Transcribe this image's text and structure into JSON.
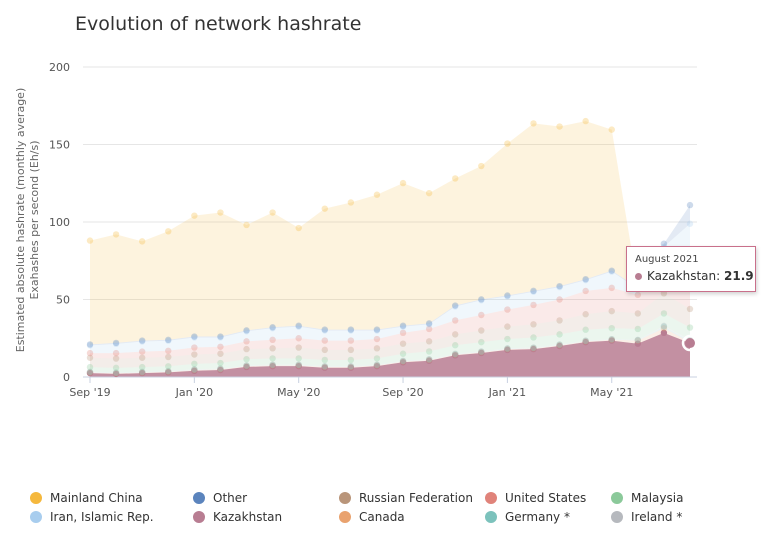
{
  "chart_data": {
    "type": "area",
    "stacked": true,
    "title": "Evolution of network hashrate",
    "ylabel": [
      "Estimated absolute hashrate (monthly average)",
      "Exahashes per second (Eh/s)"
    ],
    "xlabel": "",
    "ylim": [
      0,
      200
    ],
    "yticks": [
      "0",
      "50",
      "100",
      "150",
      "200"
    ],
    "xtick_labels": [
      {
        "label": "Sep '19",
        "index": 0
      },
      {
        "label": "Jan '20",
        "index": 4
      },
      {
        "label": "May '20",
        "index": 8
      },
      {
        "label": "Sep '20",
        "index": 12
      },
      {
        "label": "Jan '21",
        "index": 16
      },
      {
        "label": "May '21",
        "index": 20
      }
    ],
    "grid": true,
    "legend_position": "bottom",
    "categories": [
      "2019-09",
      "2019-10",
      "2019-11",
      "2019-12",
      "2020-01",
      "2020-02",
      "2020-03",
      "2020-04",
      "2020-05",
      "2020-06",
      "2020-07",
      "2020-08",
      "2020-09",
      "2020-10",
      "2020-11",
      "2020-12",
      "2021-01",
      "2021-02",
      "2021-03",
      "2021-04",
      "2021-05",
      "2021-06",
      "2021-07",
      "2021-08"
    ],
    "series": [
      {
        "name": "Kazakhstan",
        "color": "#b87d92",
        "values": [
          2.5,
          2.0,
          2.5,
          3.0,
          4.0,
          4.5,
          6.5,
          7.0,
          7.0,
          6.0,
          6.0,
          7.0,
          9.5,
          10.5,
          14.0,
          15.5,
          17.5,
          18.0,
          20.0,
          22.5,
          23.5,
          21.5,
          28.5,
          21.9
        ]
      },
      {
        "name": "Canada",
        "color": "#e9a26e",
        "values": [
          0.4,
          0.4,
          0.4,
          0.4,
          0.5,
          0.5,
          0.5,
          0.5,
          0.5,
          0.5,
          0.5,
          0.5,
          0.5,
          0.5,
          0.5,
          0.5,
          0.5,
          0.5,
          0.5,
          0.5,
          0.5,
          2.0,
          3.0,
          0.5
        ]
      },
      {
        "name": "Germany *",
        "color": "#7cc2bc",
        "values": [
          0.3,
          0.3,
          0.3,
          0.3,
          0.3,
          0.3,
          0.3,
          0.3,
          0.3,
          0.3,
          0.3,
          0.3,
          0.3,
          0.3,
          0.3,
          0.3,
          0.3,
          0.3,
          0.3,
          0.3,
          0.3,
          0.3,
          1.0,
          1.0
        ]
      },
      {
        "name": "Ireland *",
        "color": "#b6b9be",
        "values": [
          0.2,
          0.2,
          0.2,
          0.2,
          0.2,
          0.2,
          0.2,
          0.2,
          0.2,
          0.2,
          0.2,
          0.2,
          0.2,
          0.2,
          0.2,
          0.2,
          0.2,
          0.2,
          0.2,
          0.2,
          0.2,
          0.2,
          0.5,
          0.5
        ]
      },
      {
        "name": "Malaysia",
        "color": "#8bc99a",
        "values": [
          3.0,
          3.0,
          3.0,
          3.0,
          3.5,
          3.5,
          4.0,
          4.0,
          4.0,
          4.0,
          4.0,
          4.0,
          4.5,
          5.0,
          5.5,
          6.0,
          6.0,
          6.5,
          6.5,
          7.0,
          7.0,
          7.0,
          8.0,
          8.0
        ]
      },
      {
        "name": "Russian Federation",
        "color": "#b9957a",
        "values": [
          6.0,
          6.0,
          6.0,
          6.0,
          6.0,
          6.0,
          6.5,
          6.5,
          7.0,
          6.5,
          6.5,
          6.5,
          6.5,
          6.5,
          7.0,
          7.5,
          8.0,
          8.5,
          9.0,
          10.0,
          11.0,
          10.0,
          13.0,
          12.0
        ]
      },
      {
        "name": "United States",
        "color": "#e0837a",
        "values": [
          3.0,
          3.5,
          4.0,
          4.0,
          4.5,
          4.5,
          5.0,
          5.5,
          6.0,
          6.0,
          6.0,
          6.0,
          7.0,
          8.0,
          9.0,
          10.0,
          11.0,
          12.5,
          13.5,
          15.0,
          15.0,
          12.0,
          17.0,
          30.0
        ]
      },
      {
        "name": "Iran, Islamic Rep.",
        "color": "#a8cdee",
        "values": [
          5.0,
          6.0,
          6.5,
          6.5,
          6.5,
          6.0,
          6.5,
          7.5,
          7.5,
          6.5,
          6.5,
          5.5,
          4.0,
          3.0,
          9.0,
          9.5,
          8.5,
          8.5,
          8.0,
          7.0,
          10.5,
          4.0,
          13.0,
          25.0
        ]
      },
      {
        "name": "Other",
        "color": "#5b84bd",
        "values": [
          0.6,
          0.6,
          0.6,
          0.6,
          0.6,
          0.6,
          0.6,
          0.6,
          0.6,
          0.6,
          0.6,
          0.6,
          0.6,
          0.6,
          0.6,
          0.6,
          0.6,
          0.6,
          0.6,
          0.6,
          0.6,
          0.6,
          2.0,
          12.0
        ]
      },
      {
        "name": "Mainland China",
        "color": "#f5b83d",
        "values": [
          67.0,
          70.0,
          64.0,
          70.0,
          78.0,
          80.0,
          68.0,
          74.0,
          63.0,
          78.0,
          82.0,
          87.0,
          92.0,
          84.0,
          82.0,
          86.0,
          98.0,
          108.0,
          103.0,
          102.0,
          91.0,
          0.0,
          0.0,
          0.0
        ]
      }
    ]
  },
  "tooltip": {
    "date": "August 2021",
    "series": "Kazakhstan",
    "value": "21.9",
    "color": "#b87d92"
  },
  "legend": [
    {
      "label": "Mainland China",
      "color": "#f5b83d"
    },
    {
      "label": "Iran, Islamic Rep.",
      "color": "#a8cdee"
    },
    {
      "label": "Other",
      "color": "#5b84bd"
    },
    {
      "label": "Kazakhstan",
      "color": "#b87d92"
    },
    {
      "label": "Russian Federation",
      "color": "#b9957a"
    },
    {
      "label": "Canada",
      "color": "#e9a26e"
    },
    {
      "label": "United States",
      "color": "#e0837a"
    },
    {
      "label": "Germany *",
      "color": "#7cc2bc"
    },
    {
      "label": "Malaysia",
      "color": "#8bc99a"
    },
    {
      "label": "Ireland *",
      "color": "#b6b9be"
    }
  ]
}
